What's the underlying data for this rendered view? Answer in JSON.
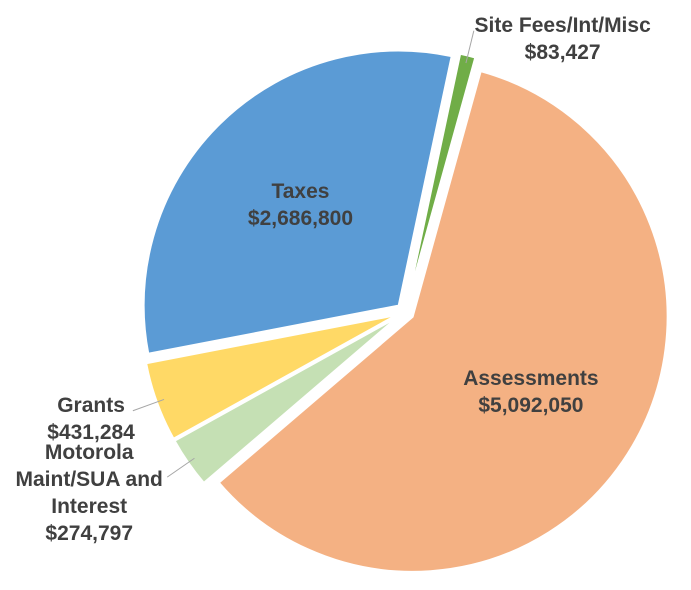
{
  "chart_data": {
    "type": "pie",
    "categories": [
      "Site Fees/Int/Misc",
      "Assessments",
      "Motorola Maint/SUA and Interest",
      "Grants",
      "Taxes"
    ],
    "values": [
      83427,
      5092050,
      274797,
      431284,
      2686800
    ],
    "value_labels": [
      "$83,427",
      "$5,092,050",
      "$274,797",
      "$431,284",
      "$2,686,800"
    ],
    "colors": [
      "#70ad47",
      "#f4b183",
      "#c5e0b4",
      "#ffd966",
      "#5b9bd5"
    ]
  }
}
